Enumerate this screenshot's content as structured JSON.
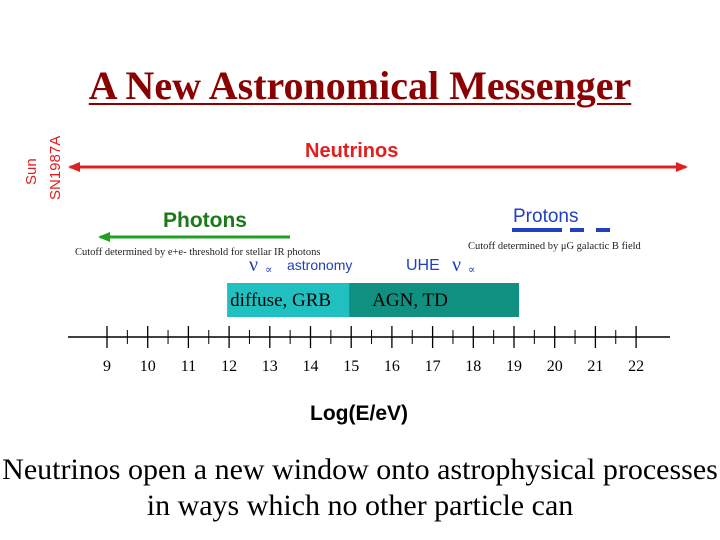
{
  "title": "A New Astronomical Messenger",
  "sources": {
    "sun": "Sun",
    "sn": "SN1987A"
  },
  "labels": {
    "neutrinos": "Neutrinos",
    "photons": "Photons",
    "protons": "Protons",
    "photon_cutoff": "Cutoff determined by e+e- threshold for stellar IR photons",
    "proton_cutoff": "Cutoff determined by μG galactic B field",
    "nu_astronomy_symbol": "ν",
    "nu_astronomy_sub": "∝",
    "nu_astronomy_text": "astronomy",
    "uhe_text": "UHE",
    "uhe_symbol": "ν",
    "uhe_sub": "∝"
  },
  "bands": [
    {
      "label": "diffuse,  GRB",
      "from": 12,
      "to": 15,
      "color": "#20c0c0"
    },
    {
      "label": "AGN,   TD",
      "from": 15,
      "to": 19.1,
      "color": "#109080"
    }
  ],
  "axis": {
    "ticks": [
      "9",
      "10",
      "11",
      "12",
      "13",
      "14",
      "15",
      "16",
      "17",
      "18",
      "19",
      "20",
      "21",
      "22"
    ],
    "label": "Log(E/eV)"
  },
  "caption": "Neutrinos open a new window onto astrophysical processes in ways which no other particle can",
  "colors": {
    "title": "#8b0000",
    "neutrino": "#e02020",
    "photon": "#20a020",
    "proton": "#2040c0"
  }
}
